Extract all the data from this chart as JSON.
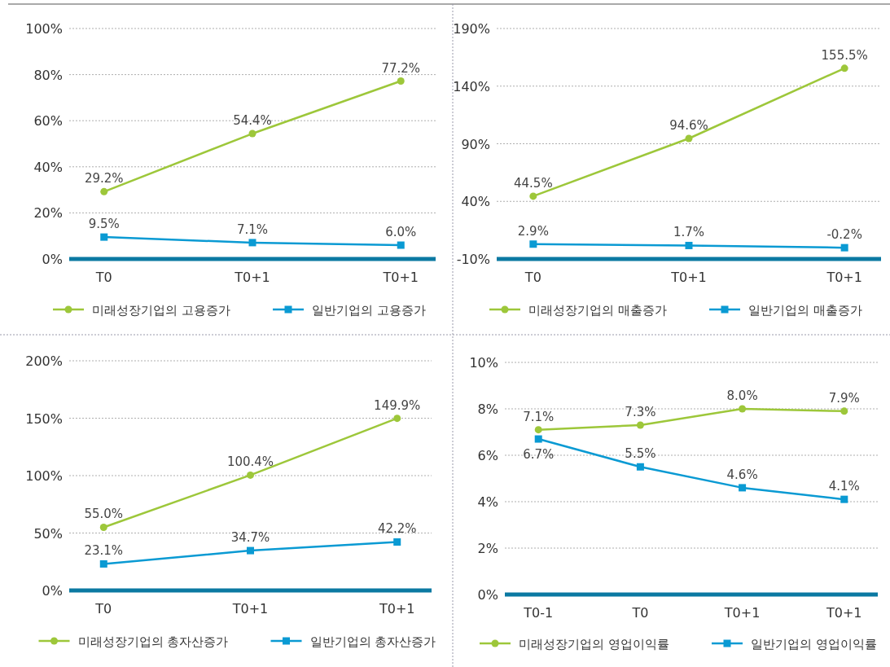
{
  "chart_data": [
    {
      "type": "line",
      "categories": [
        "T0",
        "T0+1",
        "T0+1"
      ],
      "ylim": [
        0,
        100
      ],
      "yticks": [
        {
          "value": 0,
          "label": "0%"
        },
        {
          "value": 20,
          "label": "20%"
        },
        {
          "value": 40,
          "label": "40%"
        },
        {
          "value": 60,
          "label": "60%"
        },
        {
          "value": 80,
          "label": "80%"
        },
        {
          "value": 100,
          "label": "100%"
        }
      ],
      "grid": "y",
      "legend": "bottom",
      "series": [
        {
          "name": "미래성장기업의 고용증가",
          "color": "#9dc73a",
          "marker": "circle",
          "values": [
            29.2,
            54.4,
            77.2
          ],
          "value_labels": [
            "29.2%",
            "54.4%",
            "77.2%"
          ]
        },
        {
          "name": "일반기업의 고용증가",
          "color": "#0a9ad3",
          "marker": "square",
          "values": [
            9.5,
            7.1,
            6.0
          ],
          "value_labels": [
            "9.5%",
            "7.1%",
            "6.0%"
          ]
        }
      ]
    },
    {
      "type": "line",
      "categories": [
        "T0",
        "T0+1",
        "T0+1"
      ],
      "ylim": [
        -10,
        190
      ],
      "yticks": [
        {
          "value": -10,
          "label": "-10%"
        },
        {
          "value": 40,
          "label": "40%"
        },
        {
          "value": 90,
          "label": "90%"
        },
        {
          "value": 140,
          "label": "140%"
        },
        {
          "value": 190,
          "label": "190%"
        }
      ],
      "grid": "y",
      "legend": "bottom",
      "series": [
        {
          "name": "미래성장기업의 매출증가",
          "color": "#9dc73a",
          "marker": "circle",
          "values": [
            44.5,
            94.6,
            155.5
          ],
          "value_labels": [
            "44.5%",
            "94.6%",
            "155.5%"
          ]
        },
        {
          "name": "일반기업의 매출증가",
          "color": "#0a9ad3",
          "marker": "square",
          "values": [
            2.9,
            1.7,
            -0.2
          ],
          "value_labels": [
            "2.9%",
            "1.7%",
            "-0.2%"
          ]
        }
      ]
    },
    {
      "type": "line",
      "categories": [
        "T0",
        "T0+1",
        "T0+1"
      ],
      "ylim": [
        0,
        200
      ],
      "yticks": [
        {
          "value": 0,
          "label": "0%"
        },
        {
          "value": 50,
          "label": "50%"
        },
        {
          "value": 100,
          "label": "100%"
        },
        {
          "value": 150,
          "label": "150%"
        },
        {
          "value": 200,
          "label": "200%"
        }
      ],
      "grid": "y",
      "legend": "bottom",
      "series": [
        {
          "name": "미래성장기업의 총자산증가",
          "color": "#9dc73a",
          "marker": "circle",
          "values": [
            55.0,
            100.4,
            149.9
          ],
          "value_labels": [
            "55.0%",
            "100.4%",
            "149.9%"
          ]
        },
        {
          "name": "일반기업의 총자산증가",
          "color": "#0a9ad3",
          "marker": "square",
          "values": [
            23.1,
            34.7,
            42.2
          ],
          "value_labels": [
            "23.1%",
            "34.7%",
            "42.2%"
          ]
        }
      ]
    },
    {
      "type": "line",
      "categories": [
        "T0-1",
        "T0",
        "T0+1",
        "T0+1"
      ],
      "ylim": [
        0,
        10
      ],
      "yticks": [
        {
          "value": 0,
          "label": "0%"
        },
        {
          "value": 2,
          "label": "2%"
        },
        {
          "value": 4,
          "label": "4%"
        },
        {
          "value": 6,
          "label": "6%"
        },
        {
          "value": 8,
          "label": "8%"
        },
        {
          "value": 10,
          "label": "10%"
        }
      ],
      "grid": "y",
      "legend": "bottom",
      "series": [
        {
          "name": "미래성장기업의 영업이익률",
          "color": "#9dc73a",
          "marker": "circle",
          "values": [
            7.1,
            7.3,
            8.0,
            7.9
          ],
          "value_labels": [
            "7.1%",
            "7.3%",
            "8.0%",
            "7.9%"
          ]
        },
        {
          "name": "일반기업의 영업이익률",
          "color": "#0a9ad3",
          "marker": "square",
          "values": [
            6.7,
            5.5,
            4.6,
            4.1
          ],
          "value_labels": [
            "6.7%",
            "5.5%",
            "4.6%",
            "4.1%"
          ]
        }
      ]
    }
  ]
}
